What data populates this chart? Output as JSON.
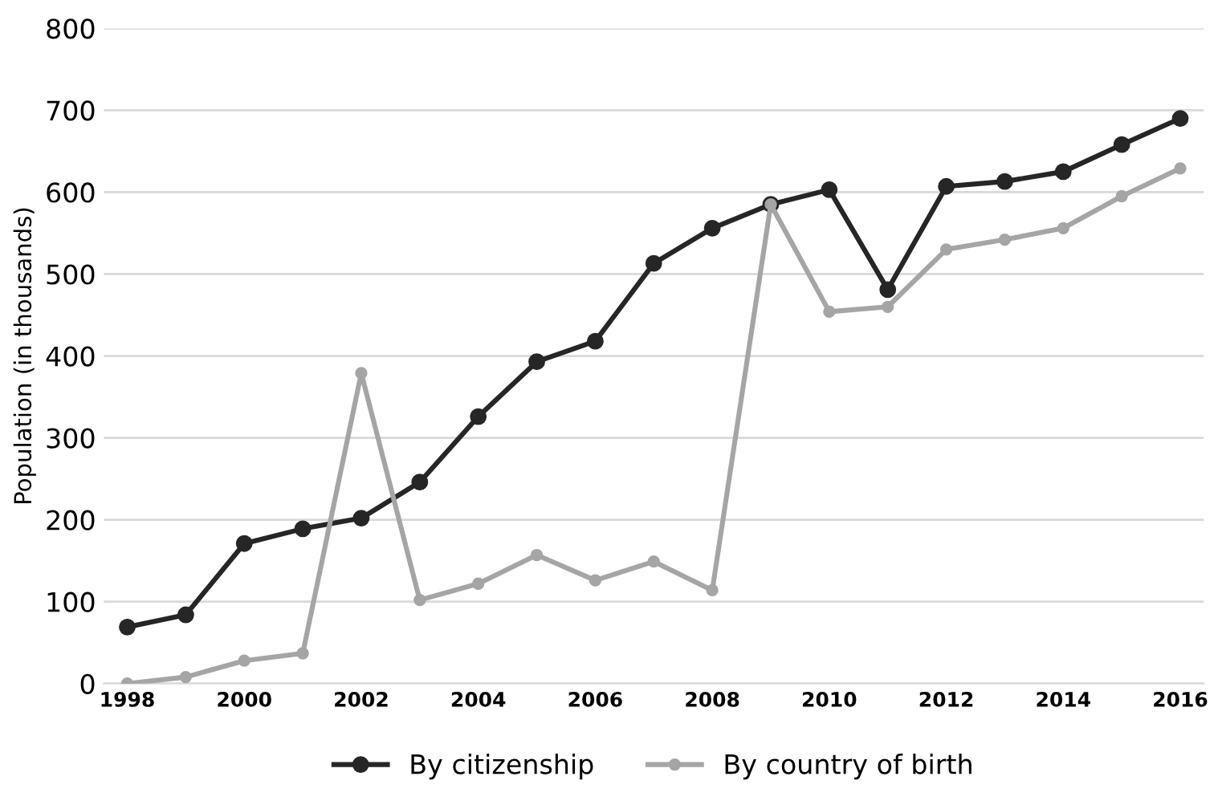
{
  "chart_data": {
    "type": "line",
    "ylabel": "Population (in thousands)",
    "x": [
      1998,
      1999,
      2000,
      2001,
      2002,
      2003,
      2004,
      2005,
      2006,
      2007,
      2008,
      2009,
      2010,
      2011,
      2012,
      2013,
      2014,
      2015,
      2016
    ],
    "series": [
      {
        "name": "By citizenship",
        "color": "#262626",
        "values": [
          69,
          84,
          171,
          189,
          202,
          246,
          326,
          393,
          418,
          513,
          556,
          585,
          603,
          481,
          607,
          613,
          625,
          658,
          690
        ]
      },
      {
        "name": "By country of birth",
        "color": "#a5a5a5",
        "values": [
          0,
          8,
          28,
          37,
          379,
          102,
          122,
          157,
          126,
          149,
          114,
          585,
          454,
          460,
          530,
          542,
          556,
          595,
          629
        ]
      }
    ],
    "xlim": [
      1997.6,
      2016.4
    ],
    "xticks": [
      1998,
      2000,
      2002,
      2004,
      2006,
      2008,
      2010,
      2012,
      2014,
      2016
    ],
    "ylim": [
      0,
      800
    ],
    "yticks": [
      0,
      100,
      200,
      300,
      400,
      500,
      600,
      700,
      800
    ],
    "grid": "y",
    "legend": "bottom",
    "marker": "circle",
    "line_style": "solid"
  }
}
